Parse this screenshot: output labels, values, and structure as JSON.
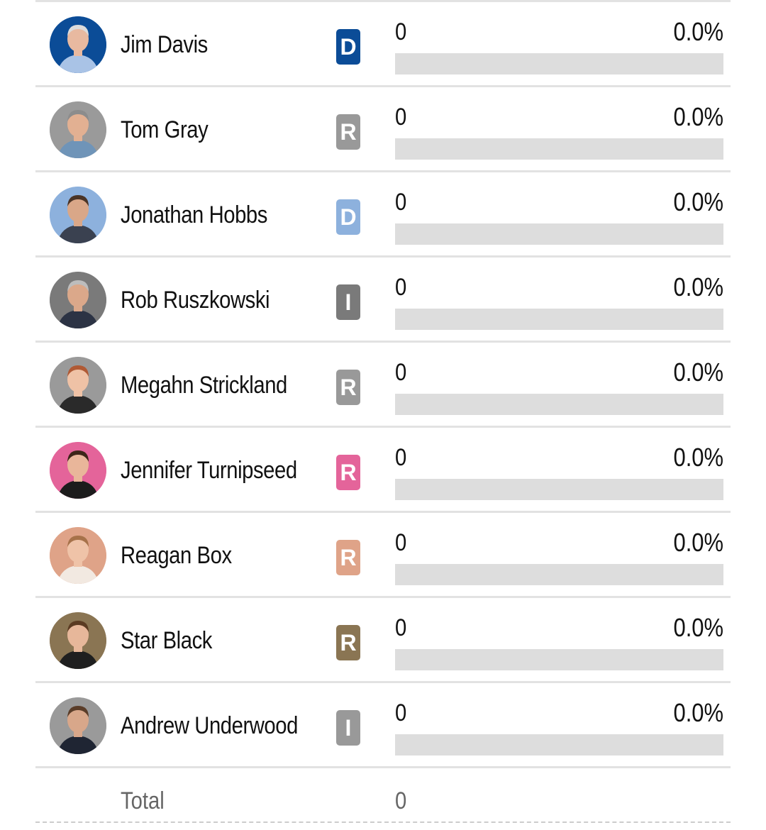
{
  "candidates": [
    {
      "name": "Jim Davis",
      "party": "D",
      "party_color": "#0b4c97",
      "avatar_ring": "#0b4c97",
      "skin": "#e8b9a0",
      "hair": "#dcdcdc",
      "shirt": "#a9c3e6",
      "votes": "0",
      "percent": "0.0%",
      "share": 0
    },
    {
      "name": "Tom Gray",
      "party": "R",
      "party_color": "#999999",
      "avatar_ring": "#9a9a9a",
      "skin": "#e2b092",
      "hair": "#8c8c8c",
      "shirt": "#6f94b8",
      "votes": "0",
      "percent": "0.0%",
      "share": 0
    },
    {
      "name": "Jonathan Hobbs",
      "party": "D",
      "party_color": "#8db1dd",
      "avatar_ring": "#8db1dd",
      "skin": "#d9a788",
      "hair": "#4a3426",
      "shirt": "#3a4150",
      "votes": "0",
      "percent": "0.0%",
      "share": 0
    },
    {
      "name": "Rob Ruszkowski",
      "party": "I",
      "party_color": "#7a7a7a",
      "avatar_ring": "#7a7a7a",
      "skin": "#dba88a",
      "hair": "#bdbdbd",
      "shirt": "#2c3344",
      "votes": "0",
      "percent": "0.0%",
      "share": 0
    },
    {
      "name": "Megahn Strickland",
      "party": "R",
      "party_color": "#999999",
      "avatar_ring": "#9a9a9a",
      "skin": "#efc2a6",
      "hair": "#b05a35",
      "shirt": "#2a2a2a",
      "votes": "0",
      "percent": "0.0%",
      "share": 0
    },
    {
      "name": "Jennifer Turnipseed",
      "party": "R",
      "party_color": "#e4649a",
      "avatar_ring": "#e4649a",
      "skin": "#e9b69a",
      "hair": "#3d2518",
      "shirt": "#1c1c1c",
      "votes": "0",
      "percent": "0.0%",
      "share": 0
    },
    {
      "name": "Reagan Box",
      "party": "R",
      "party_color": "#dfa388",
      "avatar_ring": "#dfa388",
      "skin": "#efc3a8",
      "hair": "#a7724a",
      "shirt": "#f2e9e1",
      "votes": "0",
      "percent": "0.0%",
      "share": 0
    },
    {
      "name": "Star Black",
      "party": "R",
      "party_color": "#8a7553",
      "avatar_ring": "#8a7553",
      "skin": "#e7b79a",
      "hair": "#5b3b22",
      "shirt": "#1f1f1f",
      "votes": "0",
      "percent": "0.0%",
      "share": 0
    },
    {
      "name": "Andrew Underwood",
      "party": "I",
      "party_color": "#999999",
      "avatar_ring": "#9a9a9a",
      "skin": "#d8a78a",
      "hair": "#5a3d29",
      "shirt": "#1f2533",
      "votes": "0",
      "percent": "0.0%",
      "share": 0
    }
  ],
  "total": {
    "label": "Total",
    "votes": "0"
  }
}
